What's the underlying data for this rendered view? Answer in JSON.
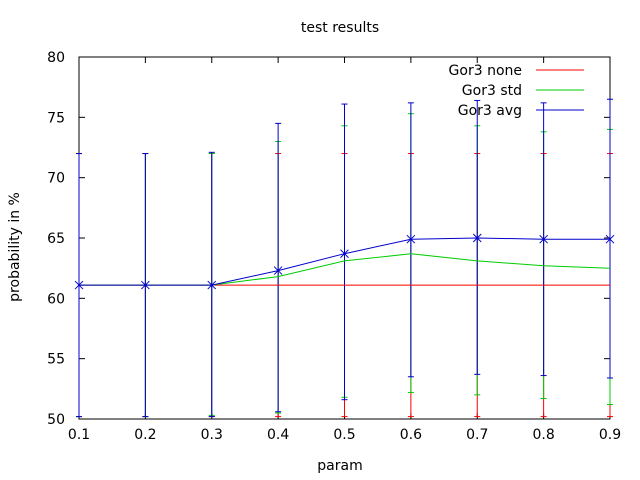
{
  "chart_data": {
    "type": "line",
    "title": "test results",
    "xlabel": "param",
    "ylabel": "probability in %",
    "xlim": [
      0.1,
      0.9
    ],
    "ylim": [
      50,
      80
    ],
    "x_ticks": [
      "0.1",
      "0.2",
      "0.3",
      "0.4",
      "0.5",
      "0.6",
      "0.7",
      "0.8",
      "0.9"
    ],
    "y_ticks": [
      "50",
      "55",
      "60",
      "65",
      "70",
      "75",
      "80"
    ],
    "grid": false,
    "legend_position": "top-right",
    "x": [
      0.1,
      0.2,
      0.3,
      0.4,
      0.5,
      0.6,
      0.7,
      0.8,
      0.9
    ],
    "series": [
      {
        "name": "Gor3 none",
        "color": "#ff0000",
        "values": [
          61.1,
          61.1,
          61.1,
          61.1,
          61.1,
          61.1,
          61.1,
          61.1,
          61.1
        ],
        "error_low": [
          50.2,
          50.2,
          50.2,
          50.2,
          50.2,
          50.2,
          50.2,
          50.2,
          50.2
        ],
        "error_high": [
          72.0,
          72.0,
          72.0,
          72.0,
          72.0,
          72.0,
          72.0,
          72.0,
          72.0
        ]
      },
      {
        "name": "Gor3 std",
        "color": "#00cc00",
        "values": [
          61.1,
          61.1,
          61.1,
          61.8,
          63.1,
          63.7,
          63.1,
          62.7,
          62.5
        ],
        "error_low": [
          50.2,
          50.2,
          50.3,
          50.5,
          51.8,
          52.2,
          52.0,
          51.7,
          51.2
        ],
        "error_high": [
          72.0,
          72.0,
          72.0,
          73.0,
          74.3,
          75.3,
          74.3,
          73.8,
          74.0
        ]
      },
      {
        "name": "Gor3 avg",
        "color": "#0000cc",
        "values": [
          61.1,
          61.1,
          61.1,
          62.3,
          63.7,
          64.9,
          65.0,
          64.9,
          64.9
        ],
        "error_low": [
          50.2,
          50.2,
          50.2,
          50.6,
          51.6,
          53.5,
          53.7,
          53.6,
          53.4
        ],
        "error_high": [
          72.0,
          72.0,
          72.1,
          74.5,
          76.1,
          76.2,
          76.4,
          76.2,
          76.5
        ]
      }
    ]
  }
}
